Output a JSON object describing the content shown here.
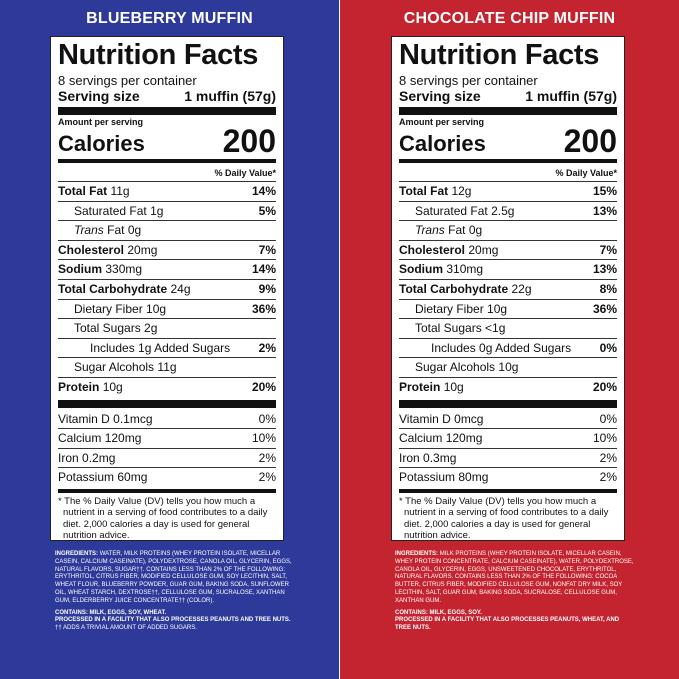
{
  "panels": {
    "left": {
      "title": "BLUEBERRY MUFFIN",
      "label": {
        "heading": "Nutrition Facts",
        "servings": "8 servings per container",
        "serving_size_label": "Serving size",
        "serving_size_value": "1 muffin (57g)",
        "amount_per_serving": "Amount per serving",
        "calories_label": "Calories",
        "calories_value": "200",
        "dv_header": "% Daily Value*",
        "nutrients": [
          {
            "name": "Total Fat",
            "value": "11g",
            "dv": "14%"
          },
          {
            "name": "Saturated Fat",
            "value": "1g",
            "dv": "5%"
          },
          {
            "name": "Trans",
            "name_suffix": "Fat",
            "value": "0g",
            "dv": ""
          },
          {
            "name": "Cholesterol",
            "value": "20mg",
            "dv": "7%"
          },
          {
            "name": "Sodium",
            "value": "330mg",
            "dv": "14%"
          },
          {
            "name": "Total Carbohydrate",
            "value": "24g",
            "dv": "9%"
          },
          {
            "name": "Dietary Fiber",
            "value": "10g",
            "dv": "36%"
          },
          {
            "name": "Total Sugars",
            "value": "2g",
            "dv": ""
          },
          {
            "name": "Includes",
            "value": "1g Added Sugars",
            "dv": "2%"
          },
          {
            "name": "Sugar Alcohols",
            "value": "11g",
            "dv": ""
          },
          {
            "name": "Protein",
            "value": "10g",
            "dv": "20%"
          }
        ],
        "vitamins": [
          {
            "name": "Vitamin D",
            "value": "0.1mcg",
            "dv": "0%"
          },
          {
            "name": "Calcium",
            "value": "120mg",
            "dv": "10%"
          },
          {
            "name": "Iron",
            "value": "0.2mg",
            "dv": "2%"
          },
          {
            "name": "Potassium",
            "value": "60mg",
            "dv": "2%"
          }
        ],
        "footnote": "* The % Daily Value (DV) tells you how much a nutrient in a serving of food contributes to a daily diet. 2,000 calories a day is used for general nutrition advice."
      },
      "ingredients": {
        "label": "INGREDIENTS:",
        "text": "WATER, MILK PROTEINS (WHEY PROTEIN ISOLATE, MICELLAR CASEIN, CALCIUM CASEINATE), POLYDEXTROSE, CANOLA OIL, GLYCERIN, EGGS, NATURAL FLAVORS, SUGAR††. CONTAINS LESS THAN 2% OF THE FOLLOWING: ERYTHRITOL, CITRUS FIBER, MODIFIED CELLULOSE GUM, SOY LECITHIN, SALT, WHEAT FLOUR, BLUEBERRY POWDER, GUAR GUM, BAKING SODA, SUNFLOWER OIL, WHEAT STARCH, DEXTROSE††, CELLULOSE GUM, SUCRALOSE, XANTHAN GUM, ELDERBERRY JUICE CONCENTRATE†† (COLOR).",
        "contains": "CONTAINS: MILK, EGGS, SOY, WHEAT.",
        "facility": "PROCESSED IN A FACILITY THAT ALSO PROCESSES PEANUTS AND TREE NUTS.",
        "footnote": "†† ADDS A TRIVIAL AMOUNT OF ADDED SUGARS."
      }
    },
    "right": {
      "title": "CHOCOLATE CHIP MUFFIN",
      "label": {
        "heading": "Nutrition Facts",
        "servings": "8 servings per container",
        "serving_size_label": "Serving size",
        "serving_size_value": "1 muffin (57g)",
        "amount_per_serving": "Amount per serving",
        "calories_label": "Calories",
        "calories_value": "200",
        "dv_header": "% Daily Value*",
        "nutrients": [
          {
            "name": "Total Fat",
            "value": "12g",
            "dv": "15%"
          },
          {
            "name": "Saturated Fat",
            "value": "2.5g",
            "dv": "13%"
          },
          {
            "name": "Trans",
            "name_suffix": "Fat",
            "value": "0g",
            "dv": ""
          },
          {
            "name": "Cholesterol",
            "value": "20mg",
            "dv": "7%"
          },
          {
            "name": "Sodium",
            "value": "310mg",
            "dv": "13%"
          },
          {
            "name": "Total Carbohydrate",
            "value": "22g",
            "dv": "8%"
          },
          {
            "name": "Dietary Fiber",
            "value": "10g",
            "dv": "36%"
          },
          {
            "name": "Total Sugars",
            "value": "<1g",
            "dv": ""
          },
          {
            "name": "Includes",
            "value": "0g Added Sugars",
            "dv": "0%"
          },
          {
            "name": "Sugar Alcohols",
            "value": "10g",
            "dv": ""
          },
          {
            "name": "Protein",
            "value": "10g",
            "dv": "20%"
          }
        ],
        "vitamins": [
          {
            "name": "Vitamin D",
            "value": "0mcg",
            "dv": "0%"
          },
          {
            "name": "Calcium",
            "value": "120mg",
            "dv": "10%"
          },
          {
            "name": "Iron",
            "value": "0.3mg",
            "dv": "2%"
          },
          {
            "name": "Potassium",
            "value": "80mg",
            "dv": "2%"
          }
        ],
        "footnote": "* The % Daily Value (DV) tells you how much a nutrient in a serving of food contributes to a daily diet. 2,000 calories a day is used for general nutrition advice."
      },
      "ingredients": {
        "label": "INGREDIENTS:",
        "text": "MILK PROTEINS (WHEY PROTEIN ISOLATE, MICELLAR CASEIN, WHEY PROTEIN CONCENTRATE, CALCIUM CASEINATE), WATER, POLYDEXTROSE, CANOLA OIL, GLYCERIN, EGGS, UNSWEETENED CHOCOLATE, ERYTHRITOL, NATURAL FLAVORS. CONTAINS LESS THAN 2% OF THE FOLLOWING: COCOA BUTTER, CITRUS FIBER, MODIFIED CELLULOSE GUM, NONFAT DRY MILK, SOY LECITHIN, SALT, GUAR GUM, BAKING SODA, SUCRALOSE, CELLULOSE GUM, XANTHAN GUM.",
        "contains": "CONTAINS: MILK, EGGS, SOY.",
        "facility": "PROCESSED IN A FACILITY THAT ALSO PROCESSES PEANUTS, WHEAT, AND TREE NUTS.",
        "footnote": ""
      }
    }
  },
  "colors": {
    "left_bg": "#2e3a9a",
    "right_bg": "#c4242f"
  }
}
